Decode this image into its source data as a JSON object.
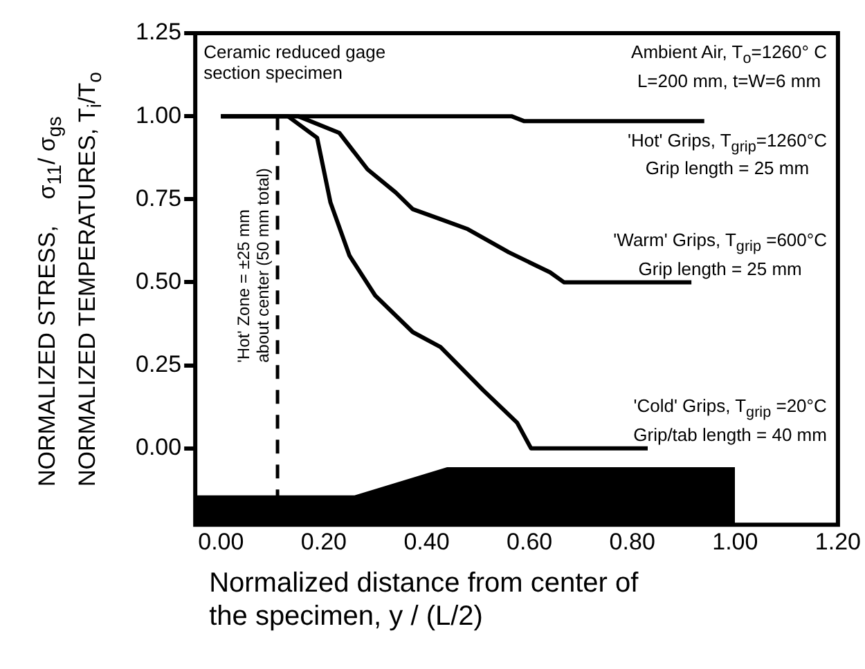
{
  "chart_data": {
    "type": "line",
    "xlabel": "Normalized distance from center of the specimen, y / (L/2)",
    "ylabel": "NORMALIZED STRESS,    σ$_{11}$/ σ$_{gs}$\nNORMALIZED TEMPERATURES, T$_{i}$/T$_{o}$",
    "series": [
      {
        "name": "'Hot' Grips, T$_{grip}$=1260°C\nGrip length = 25 mm",
        "color": "#000000",
        "x": [
          0,
          0.565,
          0.59,
          0.94
        ],
        "values": [
          1.0,
          1.0,
          0.985,
          0.985
        ]
      },
      {
        "name": "'Warm' Grips, T$_{grip}$ =600°C\nGrip length = 25 mm",
        "color": "#000000",
        "x": [
          0,
          0.15,
          0.23,
          0.285,
          0.34,
          0.373,
          0.427,
          0.48,
          0.56,
          0.64,
          0.667,
          0.915
        ],
        "values": [
          1.0,
          1.0,
          0.95,
          0.84,
          0.77,
          0.72,
          0.69,
          0.66,
          0.59,
          0.53,
          0.5,
          0.5
        ]
      },
      {
        "name": "'Cold' Grips, T$_{grip}$ =20°C\nGrip/tab length = 40 mm",
        "color": "#000000",
        "x": [
          0,
          0.13,
          0.187,
          0.213,
          0.25,
          0.3,
          0.373,
          0.427,
          0.51,
          0.576,
          0.603,
          0.83
        ],
        "values": [
          1.0,
          1.0,
          0.935,
          0.74,
          0.58,
          0.46,
          0.35,
          0.305,
          0.175,
          0.077,
          0.0,
          0.0
        ]
      }
    ],
    "xlim": [
      -0.05,
      1.2
    ],
    "xticks": [
      {
        "value": 0,
        "label": "0.00"
      },
      {
        "value": 0.2,
        "label": "0.20"
      },
      {
        "value": 0.4,
        "label": "0.40"
      },
      {
        "value": 0.6,
        "label": "0.60"
      },
      {
        "value": 0.8,
        "label": "0.80"
      },
      {
        "value": 1,
        "label": "1.00"
      },
      {
        "value": 1.2,
        "label": "1.20"
      }
    ],
    "ylim": [
      -0.23,
      1.25
    ],
    "yticks": [
      {
        "value": 0,
        "label": "0.00"
      },
      {
        "value": 0.25,
        "label": "0.25"
      },
      {
        "value": 0.5,
        "label": "0.50"
      },
      {
        "value": 0.75,
        "label": "0.75"
      },
      {
        "value": 1,
        "label": "1.00"
      },
      {
        "value": 1.25,
        "label": "1.25"
      }
    ],
    "ref_lines": [
      {
        "axis": "x",
        "value": 0.11,
        "label": "'Hot' Zone = ±25 mm\nabout center (50 mm total)",
        "line_style": "dashed",
        "color": "#000000"
      }
    ],
    "annotations": [
      "Ceramic reduced gage\nsection specimen",
      "Ambient Air, T$_{o}$=1260° C\nL=200 mm, t=W=6 mm"
    ],
    "grid": false,
    "legend": false,
    "marker": "none",
    "line_style": "solid"
  }
}
